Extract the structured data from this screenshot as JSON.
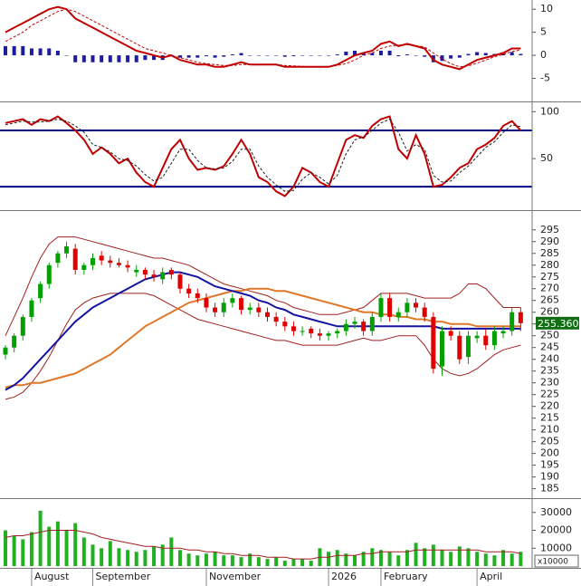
{
  "chart_data": [
    {
      "type": "macd",
      "ylim": [
        -10,
        12
      ],
      "yticks": [
        10,
        5,
        0,
        -5
      ],
      "histogram": {
        "color": "#1c1ca0",
        "values": [
          2,
          2,
          2,
          1.5,
          1.5,
          1.5,
          1,
          0,
          -1.5,
          -1.5,
          -1.5,
          -1.5,
          -1.5,
          -1.5,
          -1.5,
          -1.5,
          -1,
          -1,
          -1,
          0,
          -0.5,
          -0.5,
          -0.5,
          -0.2,
          -0.5,
          -0.3,
          0.2,
          0.5,
          0,
          0,
          0,
          0,
          -0.3,
          -0.2,
          -0.1,
          0,
          0,
          -0.1,
          0.2,
          0.8,
          1,
          0.5,
          0.5,
          1,
          1,
          -0.2,
          0.2,
          -0.1,
          -0.3,
          -1.5,
          -1.2,
          -0.7,
          -0.5,
          0.3,
          0.7,
          0.5,
          0.3,
          0.3,
          0.7,
          0.3
        ]
      },
      "series": [
        {
          "color": "#c00000",
          "width": 2,
          "values": [
            5,
            6,
            7,
            8,
            9,
            10,
            10.5,
            10,
            8,
            7,
            6,
            5,
            4,
            3,
            2,
            1,
            0.5,
            0,
            -0.5,
            0,
            -1,
            -1.5,
            -2,
            -2,
            -2.5,
            -2.5,
            -2,
            -1.5,
            -2,
            -2,
            -2,
            -2,
            -2.5,
            -2.5,
            -2.5,
            -2.5,
            -2.5,
            -2.5,
            -2,
            -1,
            0,
            0.5,
            1,
            2.5,
            3,
            2,
            2.5,
            2,
            1.5,
            -1,
            -2,
            -2.5,
            -3,
            -2,
            -1,
            -0.5,
            0,
            0.5,
            1.5,
            1.5
          ]
        },
        {
          "color": "#c00000",
          "width": 1,
          "dash": true,
          "values": [
            3,
            4,
            5,
            6.5,
            7.5,
            8.5,
            9.5,
            10,
            9.5,
            8.5,
            7.5,
            6.5,
            5.5,
            4.5,
            3.5,
            2.5,
            1.5,
            1,
            0.5,
            0,
            -0.5,
            -1,
            -1.5,
            -1.8,
            -2,
            -2.2,
            -2.2,
            -2,
            -2,
            -2,
            -2,
            -2,
            -2.2,
            -2.3,
            -2.4,
            -2.5,
            -2.5,
            -2.4,
            -2.2,
            -1.8,
            -1,
            0,
            0.5,
            1.5,
            2,
            2.2,
            2.3,
            2.1,
            1.8,
            0.5,
            -0.8,
            -1.8,
            -2.5,
            -2.3,
            -1.7,
            -1,
            -0.3,
            0.2,
            0.8,
            1.2
          ]
        }
      ]
    },
    {
      "type": "oscillator",
      "ylim": [
        -5,
        110
      ],
      "yticks": [
        100,
        50
      ],
      "levels": [
        80,
        20
      ],
      "level_color": "#000080",
      "series": [
        {
          "color": "#c00000",
          "width": 2,
          "values": [
            88,
            90,
            92,
            86,
            92,
            90,
            95,
            88,
            80,
            70,
            55,
            62,
            55,
            45,
            50,
            35,
            25,
            20,
            40,
            60,
            70,
            50,
            38,
            40,
            38,
            42,
            55,
            70,
            55,
            30,
            25,
            15,
            10,
            20,
            40,
            35,
            25,
            20,
            45,
            70,
            75,
            72,
            85,
            92,
            95,
            60,
            50,
            75,
            55,
            20,
            22,
            30,
            40,
            45,
            60,
            65,
            72,
            85,
            90,
            80
          ]
        },
        {
          "color": "#202020",
          "width": 1,
          "dash": true,
          "values": [
            86,
            88,
            90,
            89,
            89,
            90,
            92,
            90,
            85,
            78,
            65,
            62,
            57,
            50,
            48,
            42,
            33,
            26,
            30,
            45,
            60,
            60,
            48,
            40,
            39,
            40,
            47,
            60,
            60,
            42,
            30,
            22,
            15,
            16,
            28,
            35,
            30,
            23,
            32,
            55,
            70,
            73,
            80,
            88,
            92,
            78,
            58,
            65,
            60,
            32,
            25,
            26,
            35,
            42,
            52,
            62,
            68,
            78,
            86,
            84
          ]
        }
      ]
    },
    {
      "type": "candlestick",
      "ylim": [
        181,
        303
      ],
      "yticks": [
        185,
        190,
        195,
        200,
        205,
        210,
        215,
        220,
        225,
        230,
        235,
        240,
        245,
        250,
        255,
        260,
        265,
        270,
        275,
        280,
        285,
        290,
        295
      ],
      "up_color": "#00a000",
      "down_color": "#e00000",
      "open": [
        242,
        245,
        250,
        258,
        266,
        272,
        281,
        285,
        287,
        278,
        280,
        284,
        282,
        281,
        280,
        277,
        278,
        276,
        274,
        278,
        276,
        270,
        268,
        266,
        262,
        260,
        264,
        266,
        261,
        262,
        260,
        258,
        256,
        254,
        252,
        253,
        251,
        250,
        251,
        252,
        255,
        256,
        252,
        258,
        266,
        258,
        260,
        264,
        262,
        258,
        237,
        252,
        250,
        241,
        249,
        250,
        246,
        251,
        252,
        260
      ],
      "high": [
        246,
        251,
        259,
        266,
        273,
        281,
        286,
        290,
        289,
        281,
        285,
        286,
        284,
        283,
        282,
        280,
        279,
        278,
        279,
        279,
        277,
        272,
        270,
        268,
        264,
        266,
        268,
        267,
        264,
        264,
        262,
        260,
        258,
        256,
        254,
        254,
        253,
        252,
        253,
        257,
        258,
        257,
        260,
        268,
        268,
        262,
        266,
        266,
        264,
        260,
        254,
        254,
        252,
        252,
        252,
        253,
        254,
        254,
        262,
        262
      ],
      "low": [
        240,
        243,
        248,
        256,
        264,
        270,
        279,
        283,
        276,
        276,
        278,
        280,
        279,
        279,
        277,
        275,
        274,
        273,
        272,
        274,
        268,
        266,
        264,
        260,
        258,
        258,
        262,
        259,
        259,
        258,
        256,
        254,
        252,
        250,
        250,
        249,
        248,
        248,
        249,
        250,
        253,
        250,
        250,
        256,
        256,
        256,
        258,
        260,
        256,
        234,
        233,
        248,
        238,
        238,
        247,
        244,
        244,
        249,
        250,
        252
      ],
      "close": [
        245,
        250,
        258,
        265,
        272,
        280,
        285,
        288,
        278,
        280,
        283,
        282,
        281,
        280,
        279,
        278,
        276,
        275,
        277,
        276,
        270,
        268,
        266,
        262,
        260,
        264,
        266,
        261,
        262,
        260,
        258,
        256,
        254,
        252,
        252,
        251,
        250,
        251,
        252,
        255,
        256,
        252,
        258,
        266,
        258,
        260,
        264,
        262,
        258,
        236,
        252,
        250,
        240,
        250,
        250,
        246,
        252,
        252,
        260,
        255.36
      ],
      "current_price": {
        "value": 255.36,
        "label": "255.360"
      },
      "current_color": "#0f6e12",
      "series": [
        {
          "color": "#a02020",
          "width": 1,
          "values": [
            250,
            258,
            266,
            275,
            283,
            289,
            292,
            292,
            292,
            291,
            290,
            289,
            288,
            287,
            286,
            285,
            284,
            283,
            283,
            282,
            281,
            280,
            278,
            276,
            274,
            272,
            271,
            270,
            269,
            268,
            267,
            265,
            264,
            262,
            261,
            260,
            259,
            259,
            259,
            260,
            261,
            262,
            265,
            268,
            268,
            268,
            268,
            267,
            266,
            266,
            266,
            266,
            268,
            272,
            272,
            270,
            266,
            262,
            262,
            262
          ]
        },
        {
          "color": "#a02020",
          "width": 1,
          "values": [
            223,
            224,
            226,
            230,
            235,
            241,
            248,
            255,
            261,
            264,
            266,
            267,
            268,
            268,
            268,
            268,
            268,
            267,
            265,
            263,
            261,
            259,
            257,
            256,
            255,
            254,
            253,
            252,
            251,
            250,
            249,
            248,
            248,
            247,
            246,
            246,
            246,
            246,
            246,
            247,
            248,
            249,
            248,
            248,
            249,
            250,
            250,
            250,
            246,
            240,
            236,
            234,
            233,
            234,
            236,
            239,
            242,
            244,
            245,
            246
          ]
        },
        {
          "color": "#e07828",
          "width": 2,
          "values": [
            228,
            229,
            229,
            230,
            230,
            231,
            232,
            233,
            234,
            236,
            238,
            240,
            242,
            245,
            248,
            251,
            254,
            256,
            258,
            260,
            262,
            264,
            265,
            266,
            267,
            268,
            269,
            269,
            270,
            270,
            270,
            269,
            269,
            268,
            267,
            266,
            265,
            264,
            263,
            262,
            261,
            260,
            260,
            259,
            259,
            258,
            258,
            257,
            257,
            256,
            256,
            255,
            255,
            255,
            254,
            254,
            254,
            254,
            254,
            254
          ]
        },
        {
          "color": "#1414a0",
          "width": 2,
          "values": [
            227,
            229,
            232,
            236,
            240,
            244,
            248,
            252,
            256,
            259,
            262,
            264,
            266,
            268,
            270,
            272,
            274,
            275,
            276,
            277,
            277,
            276,
            275,
            273,
            271,
            270,
            269,
            268,
            267,
            265,
            264,
            262,
            261,
            259,
            258,
            257,
            256,
            255,
            254,
            254,
            254,
            254,
            254,
            254,
            254,
            254,
            254,
            254,
            254,
            254,
            253,
            253,
            253,
            253,
            253,
            253,
            253,
            253,
            253,
            253
          ]
        }
      ]
    },
    {
      "type": "volume",
      "ylim": [
        -1000,
        37500
      ],
      "yticks": [
        30000,
        20000,
        10000
      ],
      "unit_label": "x10000",
      "color": "#22b022",
      "categories": [
        null,
        null,
        null,
        "August",
        null,
        null,
        null,
        null,
        null,
        null,
        "September",
        null,
        null,
        null,
        null,
        null,
        null,
        null,
        null,
        null,
        null,
        null,
        null,
        "November",
        null,
        null,
        null,
        null,
        null,
        null,
        null,
        null,
        null,
        null,
        null,
        null,
        null,
        "2026",
        null,
        null,
        null,
        null,
        null,
        "February",
        null,
        null,
        null,
        null,
        null,
        null,
        null,
        null,
        null,
        null,
        "April",
        null,
        null,
        null,
        null,
        null
      ],
      "values": [
        20000,
        17000,
        15000,
        19000,
        31000,
        22000,
        25000,
        20000,
        24000,
        16000,
        12000,
        10000,
        14000,
        10000,
        9000,
        8000,
        9000,
        11000,
        12000,
        16000,
        9000,
        7000,
        6000,
        7000,
        8000,
        6000,
        6000,
        5000,
        7000,
        5000,
        4000,
        5000,
        3000,
        4000,
        4000,
        3000,
        10000,
        8000,
        9000,
        7000,
        6000,
        8000,
        10000,
        9000,
        8000,
        6000,
        9000,
        13000,
        10000,
        12000,
        9000,
        8000,
        11000,
        10000,
        8000,
        7000,
        6000,
        9000,
        7000,
        8000
      ],
      "series": [
        {
          "color": "#a02020",
          "width": 1,
          "values": [
            16000,
            17000,
            17000,
            18000,
            19000,
            20000,
            20000,
            20000,
            20000,
            19000,
            18000,
            16000,
            15000,
            14000,
            13000,
            12000,
            11000,
            11000,
            10000,
            10000,
            10000,
            9000,
            9000,
            8000,
            8000,
            7000,
            7000,
            6000,
            6000,
            6000,
            5000,
            5000,
            5000,
            4000,
            4000,
            4000,
            5000,
            5000,
            6000,
            6000,
            6000,
            7000,
            7000,
            8000,
            8000,
            8000,
            8000,
            9000,
            9000,
            9000,
            9000,
            9000,
            9000,
            9000,
            9000,
            8000,
            8000,
            8000,
            8000,
            7000
          ]
        }
      ]
    }
  ]
}
